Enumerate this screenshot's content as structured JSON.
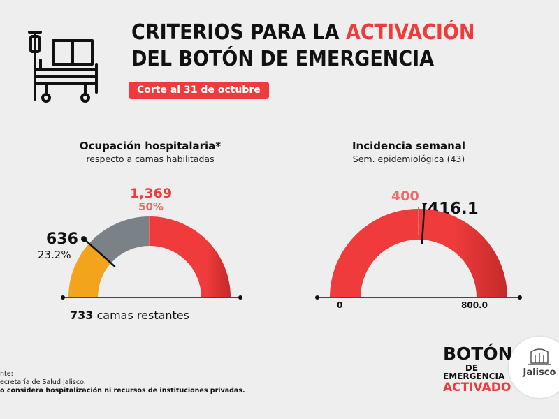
{
  "header": {
    "title_line1_prefix": "CRITERIOS PARA LA ",
    "title_line1_accent": "ACTIVACIÓN",
    "title_line2": "DEL BOTÓN DE EMERGENCIA",
    "corte_label": "Corte al 31 de octubre",
    "icon": "hospital-bed-icon"
  },
  "gauge_ocupacion": {
    "title": "Ocupación hospitalaria*",
    "subtitle": "respecto a camas habilitadas",
    "threshold_value": "1,369",
    "threshold_pct": "50%",
    "current_value": "636",
    "current_pct": "23.2%",
    "remaining_value": "733",
    "remaining_label": " camas restantes",
    "fraction_current": 0.232,
    "fraction_threshold": 0.5
  },
  "gauge_incidencia": {
    "title": "Incidencia semanal",
    "subtitle": "Sem. epidemiológica (43)",
    "threshold_value": "400",
    "current_value": "416.1",
    "min_label": "0",
    "max_label": "800.0",
    "min": 0,
    "max": 800,
    "threshold": 400,
    "current": 416.1
  },
  "footer": {
    "line1": "nte:",
    "line2": "ecretaría de Salud Jalisco.",
    "line3": "o considera hospitalización ni recursos de instituciones privadas."
  },
  "badge": {
    "line1": "BOTÓN",
    "line2": "DE EMERGENCIA",
    "line3": "ACTIVADO"
  },
  "logo": {
    "name": "Jalisco",
    "icon": "jalisco-crest-icon"
  },
  "colors": {
    "red": "#ef3b3b",
    "dark_red": "#c42a2a",
    "gray": "#7a8288",
    "yellow": "#f2a51c",
    "background": "#eeeeee"
  }
}
